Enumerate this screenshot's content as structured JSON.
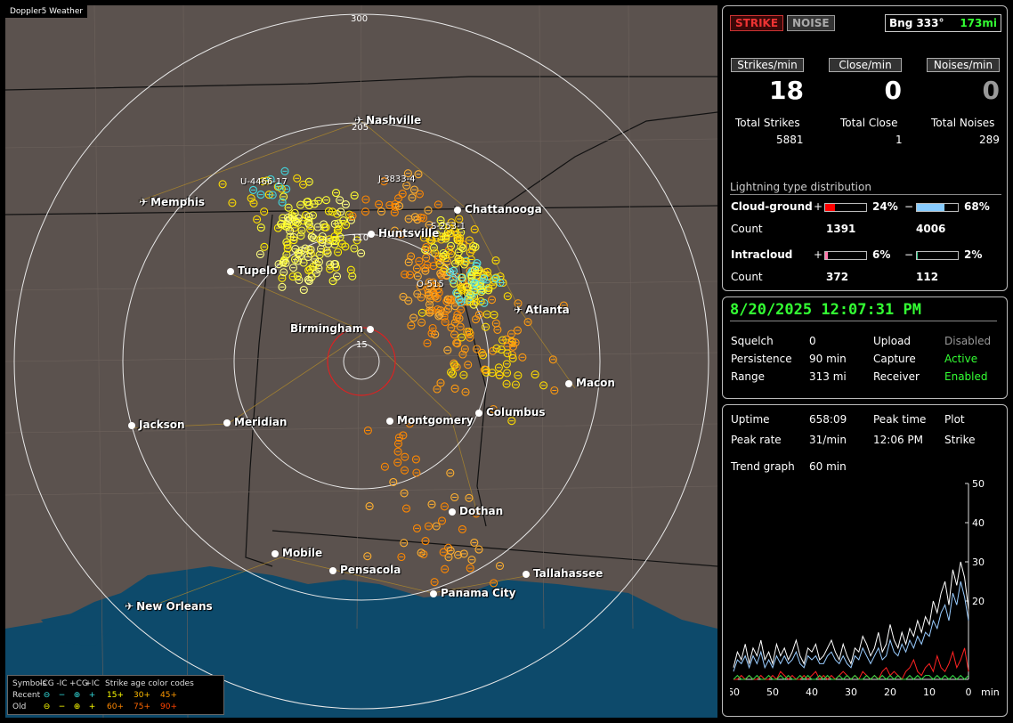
{
  "app_title": "Doppler5 Weather",
  "map": {
    "ring_labels": [
      "300",
      "205",
      "110",
      "15"
    ],
    "cities": [
      {
        "name": "Nashville",
        "type": "airport"
      },
      {
        "name": "Memphis",
        "type": "airport"
      },
      {
        "name": "Chattanooga",
        "type": "city"
      },
      {
        "name": "Huntsville",
        "type": "city"
      },
      {
        "name": "Tupelo",
        "type": "city"
      },
      {
        "name": "Atlanta",
        "type": "airport"
      },
      {
        "name": "Birmingham",
        "type": "city"
      },
      {
        "name": "Macon",
        "type": "city"
      },
      {
        "name": "Jackson",
        "type": "city"
      },
      {
        "name": "Meridian",
        "type": "city"
      },
      {
        "name": "Montgomery",
        "type": "city"
      },
      {
        "name": "Columbus",
        "type": "city"
      },
      {
        "name": "Dothan",
        "type": "city"
      },
      {
        "name": "Mobile",
        "type": "city"
      },
      {
        "name": "Pensacola",
        "type": "city"
      },
      {
        "name": "Tallahassee",
        "type": "city"
      },
      {
        "name": "Panama City",
        "type": "city"
      },
      {
        "name": "New Orleans",
        "type": "airport"
      }
    ],
    "storm_labels": [
      "U-4466-17",
      "J-3833-4",
      "S-253-1",
      "O-515"
    ],
    "legend": {
      "symbols_label": "Symbols",
      "cols": [
        "-CG",
        "-IC",
        "+CG",
        "+IC"
      ],
      "age_label": "Strike age color codes",
      "recent_label": "Recent",
      "old_label": "Old",
      "recent_ages": [
        "15+",
        "30+",
        "45+"
      ],
      "old_ages": [
        "60+",
        "75+",
        "90+"
      ]
    }
  },
  "status": {
    "strike_btn": "STRIKE",
    "noise_btn": "NOISE",
    "bearing": "Bng 333°",
    "range": "173mi"
  },
  "rates": {
    "strikes_label": "Strikes/min",
    "close_label": "Close/min",
    "noises_label": "Noises/min",
    "strikes": "18",
    "close": "0",
    "noises": "0",
    "total_strikes_label": "Total Strikes",
    "total_close_label": "Total Close",
    "total_noises_label": "Total Noises",
    "total_strikes": "5881",
    "total_close": "1",
    "total_noises": "289"
  },
  "distribution": {
    "title": "Lightning type distribution",
    "cg_label": "Cloud-ground",
    "ic_label": "Intracloud",
    "count_label": "Count",
    "plus": "+",
    "minus": "−",
    "cg_pos_pct": "24%",
    "cg_neg_pct": "68%",
    "cg_pos_count": "1391",
    "cg_neg_count": "4006",
    "ic_pos_pct": "6%",
    "ic_neg_pct": "2%",
    "ic_pos_count": "372",
    "ic_neg_count": "112",
    "cg_pos_frac": 0.24,
    "cg_neg_frac": 0.68,
    "ic_pos_frac": 0.06,
    "ic_neg_frac": 0.02,
    "colors": {
      "cg_pos": "#ff0000",
      "cg_neg": "#88ccff",
      "ic_pos": "#ff77aa",
      "ic_neg": "#33cc88"
    }
  },
  "settings": {
    "datetime": "8/20/2025 12:07:31 PM",
    "squelch_label": "Squelch",
    "squelch": "0",
    "persistence_label": "Persistence",
    "persistence": "90 min",
    "range_label": "Range",
    "range": "313 mi",
    "upload_label": "Upload",
    "upload": "Disabled",
    "capture_label": "Capture",
    "capture": "Active",
    "receiver_label": "Receiver",
    "receiver": "Enabled"
  },
  "stats": {
    "uptime_label": "Uptime",
    "uptime": "658:09",
    "peak_rate_label": "Peak rate",
    "peak_rate": "31/min",
    "peak_time_label": "Peak time",
    "peak_time": "12:06 PM",
    "plot_label": "Plot",
    "plot": "Strike",
    "trend_label": "Trend graph",
    "trend": "60 min"
  },
  "chart_data": {
    "type": "line",
    "x_ticks": [
      "60",
      "50",
      "40",
      "30",
      "20",
      "10",
      "0"
    ],
    "x_unit": "min",
    "y_ticks": [
      "50",
      "40",
      "30",
      "20"
    ],
    "ylim": [
      0,
      50
    ],
    "xlim": [
      60,
      0
    ],
    "series": [
      {
        "color": "#ffffff",
        "values": [
          3,
          7,
          5,
          9,
          4,
          8,
          6,
          10,
          5,
          7,
          4,
          9,
          6,
          8,
          5,
          7,
          10,
          6,
          4,
          8,
          7,
          9,
          5,
          6,
          8,
          10,
          7,
          5,
          9,
          6,
          4,
          8,
          7,
          11,
          9,
          6,
          8,
          12,
          7,
          9,
          14,
          10,
          8,
          12,
          9,
          13,
          11,
          15,
          12,
          16,
          14,
          20,
          17,
          22,
          25,
          19,
          28,
          24,
          30,
          26,
          18
        ]
      },
      {
        "color": "#99ccff",
        "values": [
          2,
          5,
          4,
          6,
          3,
          6,
          4,
          7,
          3,
          5,
          3,
          6,
          4,
          6,
          4,
          5,
          7,
          4,
          3,
          6,
          5,
          6,
          4,
          4,
          6,
          7,
          5,
          4,
          6,
          4,
          3,
          6,
          5,
          8,
          6,
          4,
          6,
          8,
          5,
          6,
          10,
          7,
          6,
          9,
          7,
          10,
          8,
          11,
          9,
          12,
          11,
          15,
          13,
          17,
          19,
          15,
          22,
          19,
          25,
          21,
          15
        ]
      },
      {
        "color": "#ff2222",
        "values": [
          0,
          0,
          1,
          0,
          1,
          0,
          0,
          1,
          0,
          0,
          1,
          0,
          2,
          1,
          0,
          1,
          0,
          0,
          1,
          0,
          1,
          2,
          0,
          1,
          0,
          1,
          0,
          1,
          2,
          1,
          0,
          1,
          0,
          2,
          1,
          0,
          1,
          0,
          2,
          3,
          1,
          2,
          1,
          0,
          2,
          3,
          5,
          2,
          1,
          3,
          4,
          2,
          6,
          3,
          2,
          4,
          7,
          3,
          5,
          8,
          2
        ]
      },
      {
        "color": "#33dd44",
        "values": [
          0,
          1,
          0,
          0,
          1,
          0,
          1,
          0,
          0,
          1,
          0,
          0,
          1,
          0,
          1,
          0,
          0,
          1,
          0,
          1,
          0,
          0,
          1,
          0,
          1,
          0,
          0,
          1,
          0,
          1,
          0,
          1,
          0,
          0,
          1,
          0,
          1,
          0,
          1,
          0,
          1,
          0,
          1,
          0,
          0,
          1,
          0,
          1,
          0,
          1,
          1,
          0,
          1,
          0,
          1,
          0,
          1,
          0,
          1,
          0,
          1
        ]
      }
    ]
  }
}
